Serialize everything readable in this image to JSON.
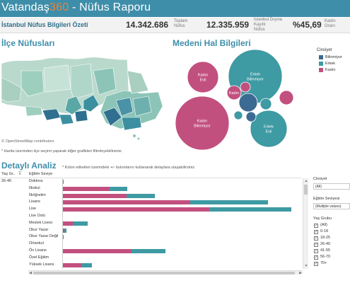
{
  "header": {
    "brand_a": "Vatandaş",
    "brand_b": "360",
    "title_rest": " - Nüfus Raporu"
  },
  "kpis": {
    "heading": "İstanbul Nüfus Bilgileri Özeti",
    "total_value": "14.342.686",
    "total_label_1": "Toplam",
    "total_label_2": "Nüfus",
    "external_value": "12.335.959",
    "external_label_1": "İstanbul Dışına",
    "external_label_2": "Kayıtlı",
    "external_label_3": "Nüfus",
    "female_value": "%45,69",
    "female_label_1": "Kadın",
    "female_label_2": "Oranı"
  },
  "map": {
    "title": "İlçe Nüfusları",
    "credit": "© OpenStreetMap contributors",
    "hint": "* Harita üzerinden ilçe seçimi yaparak diğer grafikleri filtreleyebilirsiniz."
  },
  "marital": {
    "title": "Medeni Hal Bilgileri",
    "legend_title": "Cinsiyet",
    "legend": [
      {
        "label": "Bilinmiyor",
        "color": "#3b6a92"
      },
      {
        "label": "Erkek",
        "color": "#3e9aa3"
      },
      {
        "label": "Kadın",
        "color": "#c2507f"
      }
    ],
    "bubbles": [
      {
        "lines": [
          "Erkek",
          "Bilinmiyor"
        ],
        "gender": "Erkek"
      },
      {
        "lines": [
          "Kadın",
          "Evli"
        ],
        "gender": "Kadın"
      },
      {
        "lines": [
          "Kadın",
          "Bilinmiyor"
        ],
        "gender": "Kadın"
      },
      {
        "lines": [
          "Erkek",
          "Evli"
        ],
        "gender": "Erkek"
      },
      {
        "lines": [
          "Kadın"
        ],
        "gender": "Kadın"
      },
      {
        "lines": [],
        "gender": "Bilinmiyor"
      },
      {
        "lines": [],
        "gender": "Bilinmiyor"
      },
      {
        "lines": [],
        "gender": "Erkek"
      },
      {
        "lines": [],
        "gender": "Kadın"
      },
      {
        "lines": [],
        "gender": "Kadın"
      },
      {
        "lines": [],
        "gender": "Erkek"
      }
    ]
  },
  "detail": {
    "title": "Detaylı Analiz",
    "hint": "* Kolon etiketleri üzerindeki +/- butonlarını kullanarak detaylara ulaşabilirsiniz.",
    "col_age": "Yaş Gr..",
    "col_edu": "Eğitim Seviye",
    "age_value": "26-40",
    "rows": [
      {
        "label": "Doktora",
        "female": 1.0,
        "male": 0.3
      },
      {
        "label": "İlkokul",
        "female": 67,
        "male": 25
      },
      {
        "label": "İlköğretim",
        "female": 91,
        "male": 40
      },
      {
        "label": "Lisans",
        "female": 181,
        "male": 110
      },
      {
        "label": "Lise",
        "female": 208,
        "male": 116
      },
      {
        "label": "Lise Üstü",
        "female": 0,
        "male": 0
      },
      {
        "label": "Meslek Lisesi",
        "female": 15,
        "male": 21
      },
      {
        "label": "Okur Yazar",
        "female": 3,
        "male": 3
      },
      {
        "label": "Okur Yazar Değil",
        "female": 0.8,
        "male": 0.3
      },
      {
        "label": "Ortaokul",
        "female": 0.4,
        "male": 0.2
      },
      {
        "label": "Ön Lisans",
        "female": 98,
        "male": 48
      },
      {
        "label": "Özel Eğitim",
        "female": 0.3,
        "male": 0.2
      },
      {
        "label": "Yüksek Lisans",
        "female": 27,
        "male": 15
      }
    ],
    "colors": {
      "female": "#c2507f",
      "male": "#3e9aa3"
    }
  },
  "filters": {
    "gender_title": "Cinsiyet",
    "gender_value": "(All)",
    "edu_title": "Eğitim Seviyesi",
    "edu_value": "(Multiple values)",
    "age_title": "Yaş Grubu",
    "age_items": [
      "(All)",
      "0-18",
      "18-25",
      "26-40",
      "41-55",
      "56-70",
      "70+"
    ]
  }
}
